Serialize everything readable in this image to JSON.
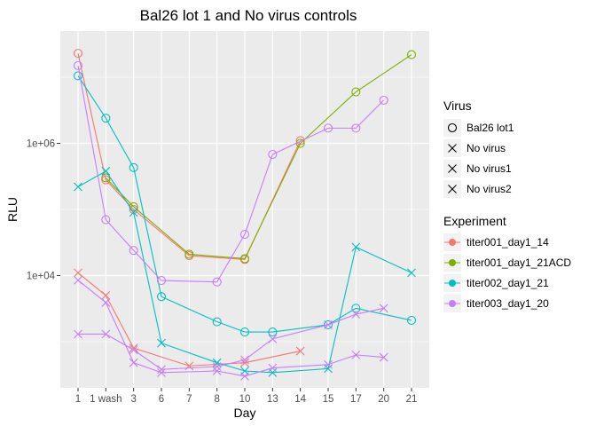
{
  "chart_data": {
    "type": "line",
    "title": "Bal26 lot 1 and No virus controls",
    "xlabel": "Day",
    "ylabel": "RLU",
    "y_scale": "log10",
    "ylim": [
      200,
      50000000
    ],
    "categories": [
      "1",
      "1 wash",
      "3",
      "6",
      "7",
      "8",
      "10",
      "13",
      "14",
      "15",
      "17",
      "20",
      "21"
    ],
    "y_ticks": [
      {
        "value": 1000000,
        "label": "1e+06"
      },
      {
        "value": 10000,
        "label": "1e+04"
      }
    ],
    "grid": true,
    "legend_position": "right",
    "legend_virus": {
      "title": "Virus",
      "items": [
        {
          "label": "Bal26 lot1",
          "shape": "circle"
        },
        {
          "label": "No virus",
          "shape": "x"
        },
        {
          "label": "No virus1",
          "shape": "x"
        },
        {
          "label": "No virus2",
          "shape": "x"
        }
      ]
    },
    "legend_experiment": {
      "title": "Experiment",
      "items": [
        {
          "label": "titer001_day1_14",
          "color": "#F8766D"
        },
        {
          "label": "titer001_day1_21ACD",
          "color": "#7CAE00"
        },
        {
          "label": "titer002_day1_21",
          "color": "#00BFC4"
        },
        {
          "label": "titer003_day1_20",
          "color": "#C77CFF"
        }
      ]
    },
    "series": [
      {
        "experiment": "titer001_day1_14",
        "virus": "Bal26 lot1",
        "color": "#F8766D",
        "shape": "circle",
        "points": [
          [
            "1",
            23000000
          ],
          [
            "1 wash",
            280000
          ],
          [
            "3",
            100000
          ],
          [
            "7",
            20000
          ],
          [
            "10",
            17500
          ],
          [
            "14",
            1100000
          ]
        ]
      },
      {
        "experiment": "titer001_day1_14",
        "virus": "No virus",
        "color": "#F8766D",
        "shape": "x",
        "points": [
          [
            "1",
            11000
          ],
          [
            "1 wash",
            5000
          ],
          [
            "3",
            800
          ],
          [
            "7",
            430
          ],
          [
            "10",
            480
          ],
          [
            "14",
            720
          ]
        ]
      },
      {
        "experiment": "titer001_day1_21ACD",
        "virus": "Bal26 lot1",
        "color": "#7CAE00",
        "shape": "circle",
        "points": [
          [
            "1 wash",
            300000
          ],
          [
            "3",
            110000
          ],
          [
            "7",
            21000
          ],
          [
            "10",
            18000
          ],
          [
            "14",
            1000000
          ],
          [
            "17",
            6000000
          ],
          [
            "21",
            22000000
          ]
        ]
      },
      {
        "experiment": "titer002_day1_21",
        "virus": "Bal26 lot1",
        "color": "#00BFC4",
        "shape": "circle",
        "points": [
          [
            "1",
            10500000
          ],
          [
            "1 wash",
            2400000
          ],
          [
            "3",
            430000
          ],
          [
            "6",
            4800
          ],
          [
            "8",
            2000
          ],
          [
            "10",
            1400
          ],
          [
            "13",
            1400
          ],
          [
            "15",
            1800
          ],
          [
            "17",
            3200
          ],
          [
            "21",
            2100
          ]
        ]
      },
      {
        "experiment": "titer002_day1_21",
        "virus": "No virus",
        "color": "#00BFC4",
        "shape": "x",
        "points": [
          [
            "1",
            220000
          ],
          [
            "1 wash",
            380000
          ],
          [
            "3",
            90000
          ],
          [
            "6",
            950
          ],
          [
            "8",
            480
          ],
          [
            "10",
            360
          ],
          [
            "13",
            340
          ],
          [
            "15",
            390
          ],
          [
            "17",
            27000
          ],
          [
            "21",
            11000
          ]
        ]
      },
      {
        "experiment": "titer003_day1_20",
        "virus": "Bal26 lot1",
        "color": "#C77CFF",
        "shape": "circle",
        "points": [
          [
            "1",
            15000000
          ],
          [
            "1 wash",
            70000
          ],
          [
            "3",
            24000
          ],
          [
            "6",
            8400
          ],
          [
            "8",
            8000
          ],
          [
            "10",
            42000
          ],
          [
            "13",
            680000
          ],
          [
            "15",
            1700000
          ],
          [
            "17",
            1700000
          ],
          [
            "20",
            4500000
          ]
        ]
      },
      {
        "experiment": "titer003_day1_20",
        "virus": "No virus1",
        "color": "#C77CFF",
        "shape": "x",
        "points": [
          [
            "1",
            8500
          ],
          [
            "1 wash",
            3900
          ],
          [
            "3",
            480
          ],
          [
            "6",
            340
          ],
          [
            "8",
            360
          ],
          [
            "10",
            300
          ],
          [
            "13",
            400
          ],
          [
            "15",
            450
          ],
          [
            "17",
            630
          ],
          [
            "20",
            580
          ]
        ]
      },
      {
        "experiment": "titer003_day1_20",
        "virus": "No virus2",
        "color": "#C77CFF",
        "shape": "x",
        "points": [
          [
            "1",
            1300
          ],
          [
            "1 wash",
            1300
          ],
          [
            "3",
            750
          ],
          [
            "6",
            380
          ],
          [
            "8",
            420
          ],
          [
            "10",
            530
          ],
          [
            "13",
            1100
          ],
          [
            "15",
            1800
          ],
          [
            "17",
            2600
          ],
          [
            "20",
            3200
          ]
        ]
      }
    ]
  }
}
